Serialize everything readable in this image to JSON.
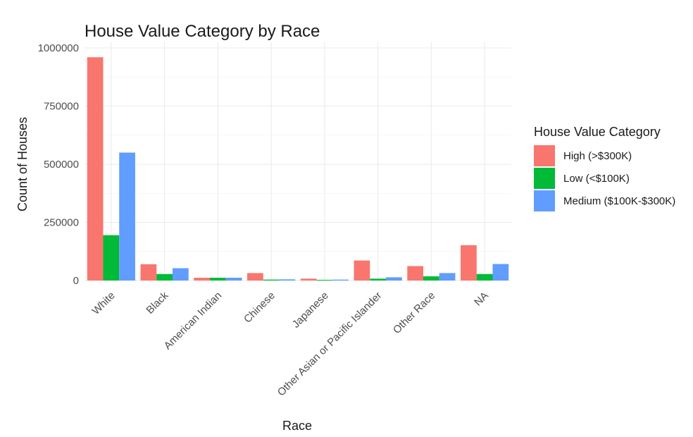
{
  "chart_data": {
    "type": "bar",
    "title": "House Value Category by Race",
    "xlabel": "Race",
    "ylabel": "Count of Houses",
    "ylim": [
      0,
      1000000
    ],
    "yticks": [
      0,
      250000,
      500000,
      750000,
      1000000
    ],
    "ytick_labels": [
      "0",
      "250000",
      "500000",
      "750000",
      "1000000"
    ],
    "grid": true,
    "legend_title": "House Value Category",
    "legend_position": "right",
    "categories": [
      "White",
      "Black",
      "American Indian",
      "Chinese",
      "Japanese",
      "Other Asian or Pacific Islander",
      "Other Race",
      "NA"
    ],
    "series": [
      {
        "name": "High (>$300K)",
        "color": "#f8766d",
        "values": [
          960000,
          70000,
          12000,
          32000,
          8000,
          86000,
          62000,
          152000
        ]
      },
      {
        "name": "Low (<$100K)",
        "color": "#00ba38",
        "values": [
          195000,
          28000,
          12000,
          4000,
          3000,
          8000,
          18000,
          28000
        ]
      },
      {
        "name": "Medium ($100K-$300K)",
        "color": "#619cff",
        "values": [
          550000,
          53000,
          12000,
          5000,
          4000,
          14000,
          32000,
          71000
        ]
      }
    ]
  }
}
